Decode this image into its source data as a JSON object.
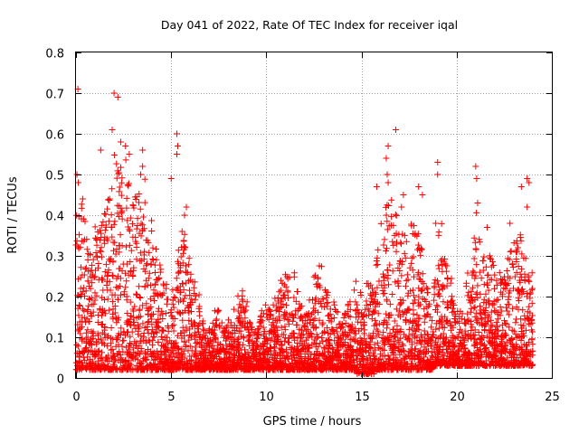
{
  "chart_data": {
    "type": "scatter",
    "title": "Day 041 of 2022, Rate Of TEC Index for receiver iqal",
    "xlabel": "GPS time / hours",
    "ylabel": "ROTI / TECUs",
    "xlim": [
      0,
      25
    ],
    "ylim": [
      0,
      0.8
    ],
    "x_ticks": [
      "0",
      "5",
      "10",
      "15",
      "20",
      "25"
    ],
    "y_ticks": [
      "0",
      "0.1",
      "0.2",
      "0.3",
      "0.4",
      "0.5",
      "0.6",
      "0.7",
      "0.8"
    ],
    "grid": true,
    "marker": "plus",
    "color": "#ff0000",
    "series": [
      {
        "envelope": [
          [
            0.0,
            0.02,
            0.4
          ],
          [
            0.25,
            0.02,
            0.44
          ],
          [
            0.5,
            0.02,
            0.36
          ],
          [
            0.75,
            0.02,
            0.3
          ],
          [
            1.0,
            0.02,
            0.38
          ],
          [
            1.25,
            0.02,
            0.42
          ],
          [
            1.5,
            0.02,
            0.45
          ],
          [
            1.75,
            0.02,
            0.48
          ],
          [
            2.0,
            0.02,
            0.55
          ],
          [
            2.25,
            0.02,
            0.56
          ],
          [
            2.5,
            0.02,
            0.55
          ],
          [
            2.75,
            0.02,
            0.5
          ],
          [
            3.0,
            0.02,
            0.48
          ],
          [
            3.25,
            0.02,
            0.47
          ],
          [
            3.5,
            0.02,
            0.5
          ],
          [
            3.75,
            0.02,
            0.42
          ],
          [
            4.0,
            0.02,
            0.33
          ],
          [
            4.25,
            0.02,
            0.28
          ],
          [
            4.5,
            0.02,
            0.24
          ],
          [
            4.75,
            0.02,
            0.2
          ],
          [
            5.0,
            0.02,
            0.22
          ],
          [
            5.25,
            0.02,
            0.33
          ],
          [
            5.5,
            0.02,
            0.38
          ],
          [
            5.75,
            0.02,
            0.3
          ],
          [
            6.0,
            0.02,
            0.26
          ],
          [
            6.25,
            0.02,
            0.23
          ],
          [
            6.5,
            0.02,
            0.16
          ],
          [
            6.75,
            0.02,
            0.12
          ],
          [
            7.0,
            0.02,
            0.14
          ],
          [
            7.25,
            0.02,
            0.17
          ],
          [
            7.5,
            0.02,
            0.15
          ],
          [
            7.75,
            0.02,
            0.14
          ],
          [
            8.0,
            0.02,
            0.15
          ],
          [
            8.25,
            0.02,
            0.17
          ],
          [
            8.5,
            0.02,
            0.22
          ],
          [
            8.75,
            0.02,
            0.2
          ],
          [
            9.0,
            0.02,
            0.14
          ],
          [
            9.25,
            0.02,
            0.13
          ],
          [
            9.5,
            0.02,
            0.16
          ],
          [
            9.75,
            0.02,
            0.18
          ],
          [
            10.0,
            0.02,
            0.17
          ],
          [
            10.25,
            0.02,
            0.2
          ],
          [
            10.5,
            0.02,
            0.22
          ],
          [
            10.75,
            0.02,
            0.24
          ],
          [
            11.0,
            0.02,
            0.26
          ],
          [
            11.25,
            0.02,
            0.26
          ],
          [
            11.5,
            0.02,
            0.22
          ],
          [
            11.75,
            0.02,
            0.18
          ],
          [
            12.0,
            0.02,
            0.16
          ],
          [
            12.25,
            0.02,
            0.2
          ],
          [
            12.5,
            0.02,
            0.26
          ],
          [
            12.75,
            0.02,
            0.28
          ],
          [
            13.0,
            0.02,
            0.22
          ],
          [
            13.25,
            0.02,
            0.18
          ],
          [
            13.5,
            0.02,
            0.2
          ],
          [
            13.75,
            0.02,
            0.14
          ],
          [
            14.0,
            0.02,
            0.16
          ],
          [
            14.25,
            0.02,
            0.2
          ],
          [
            14.5,
            0.02,
            0.24
          ],
          [
            14.75,
            0.01,
            0.22
          ],
          [
            15.0,
            0.01,
            0.18
          ],
          [
            15.25,
            0.01,
            0.24
          ],
          [
            15.5,
            0.01,
            0.22
          ],
          [
            15.75,
            0.02,
            0.33
          ],
          [
            16.0,
            0.02,
            0.38
          ],
          [
            16.25,
            0.02,
            0.43
          ],
          [
            16.5,
            0.02,
            0.48
          ],
          [
            16.75,
            0.02,
            0.42
          ],
          [
            17.0,
            0.02,
            0.36
          ],
          [
            17.25,
            0.02,
            0.37
          ],
          [
            17.5,
            0.02,
            0.4
          ],
          [
            17.75,
            0.02,
            0.38
          ],
          [
            18.0,
            0.02,
            0.32
          ],
          [
            18.25,
            0.02,
            0.26
          ],
          [
            18.5,
            0.02,
            0.2
          ],
          [
            18.75,
            0.03,
            0.25
          ],
          [
            19.0,
            0.03,
            0.38
          ],
          [
            19.25,
            0.03,
            0.3
          ],
          [
            19.5,
            0.03,
            0.26
          ],
          [
            19.75,
            0.03,
            0.2
          ],
          [
            20.0,
            0.03,
            0.18
          ],
          [
            20.25,
            0.03,
            0.17
          ],
          [
            20.5,
            0.03,
            0.26
          ],
          [
            20.75,
            0.03,
            0.36
          ],
          [
            21.0,
            0.03,
            0.42
          ],
          [
            21.25,
            0.03,
            0.3
          ],
          [
            21.5,
            0.03,
            0.36
          ],
          [
            21.75,
            0.03,
            0.3
          ],
          [
            22.0,
            0.03,
            0.25
          ],
          [
            22.25,
            0.03,
            0.26
          ],
          [
            22.5,
            0.03,
            0.3
          ],
          [
            22.75,
            0.03,
            0.32
          ],
          [
            23.0,
            0.03,
            0.34
          ],
          [
            23.25,
            0.03,
            0.36
          ],
          [
            23.5,
            0.03,
            0.3
          ],
          [
            23.75,
            0.03,
            0.26
          ]
        ],
        "outliers": [
          [
            0.1,
            0.71
          ],
          [
            0.05,
            0.5
          ],
          [
            0.12,
            0.48
          ],
          [
            0.35,
            0.44
          ],
          [
            2.0,
            0.7
          ],
          [
            2.2,
            0.69
          ],
          [
            1.9,
            0.61
          ],
          [
            2.35,
            0.58
          ],
          [
            2.6,
            0.57
          ],
          [
            1.3,
            0.56
          ],
          [
            2.8,
            0.55
          ],
          [
            3.5,
            0.56
          ],
          [
            3.5,
            0.52
          ],
          [
            3.4,
            0.5
          ],
          [
            5.3,
            0.6
          ],
          [
            5.35,
            0.57
          ],
          [
            5.3,
            0.55
          ],
          [
            5.0,
            0.49
          ],
          [
            5.8,
            0.42
          ],
          [
            5.7,
            0.4
          ],
          [
            16.8,
            0.61
          ],
          [
            16.4,
            0.57
          ],
          [
            16.3,
            0.54
          ],
          [
            16.35,
            0.5
          ],
          [
            16.4,
            0.48
          ],
          [
            15.8,
            0.47
          ],
          [
            17.2,
            0.45
          ],
          [
            17.1,
            0.42
          ],
          [
            18.0,
            0.47
          ],
          [
            18.2,
            0.45
          ],
          [
            19.0,
            0.53
          ],
          [
            19.0,
            0.5
          ],
          [
            18.9,
            0.38
          ],
          [
            21.0,
            0.52
          ],
          [
            21.05,
            0.49
          ],
          [
            21.1,
            0.43
          ],
          [
            21.6,
            0.37
          ],
          [
            23.7,
            0.49
          ],
          [
            23.8,
            0.48
          ],
          [
            23.4,
            0.47
          ],
          [
            23.7,
            0.42
          ],
          [
            22.8,
            0.38
          ]
        ]
      }
    ]
  }
}
